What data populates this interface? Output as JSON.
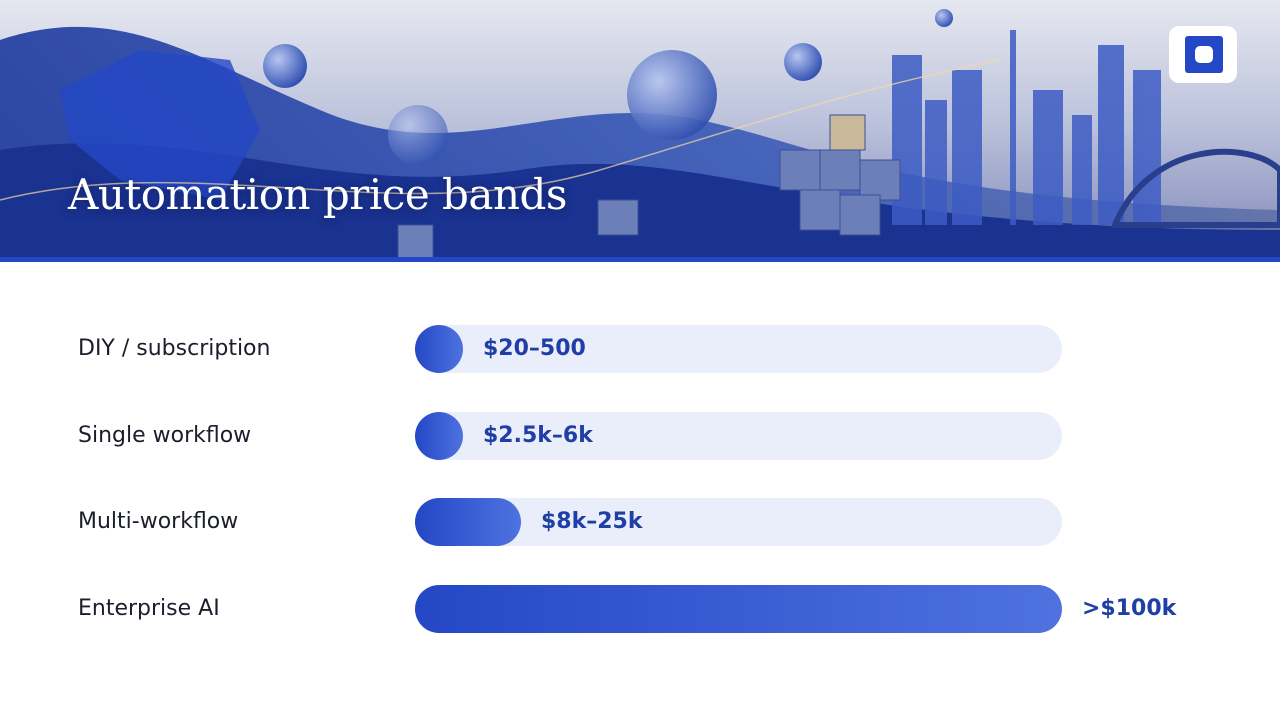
{
  "header": {
    "title": "Automation price bands"
  },
  "rows": [
    {
      "label": "DIY / subscription",
      "price": "$20–500"
    },
    {
      "label": "Single workflow",
      "price": "$2.5k–6k"
    },
    {
      "label": "Multi-workflow",
      "price": "$8k–25k"
    },
    {
      "label": "Enterprise AI",
      "price": ">$100k"
    }
  ]
}
